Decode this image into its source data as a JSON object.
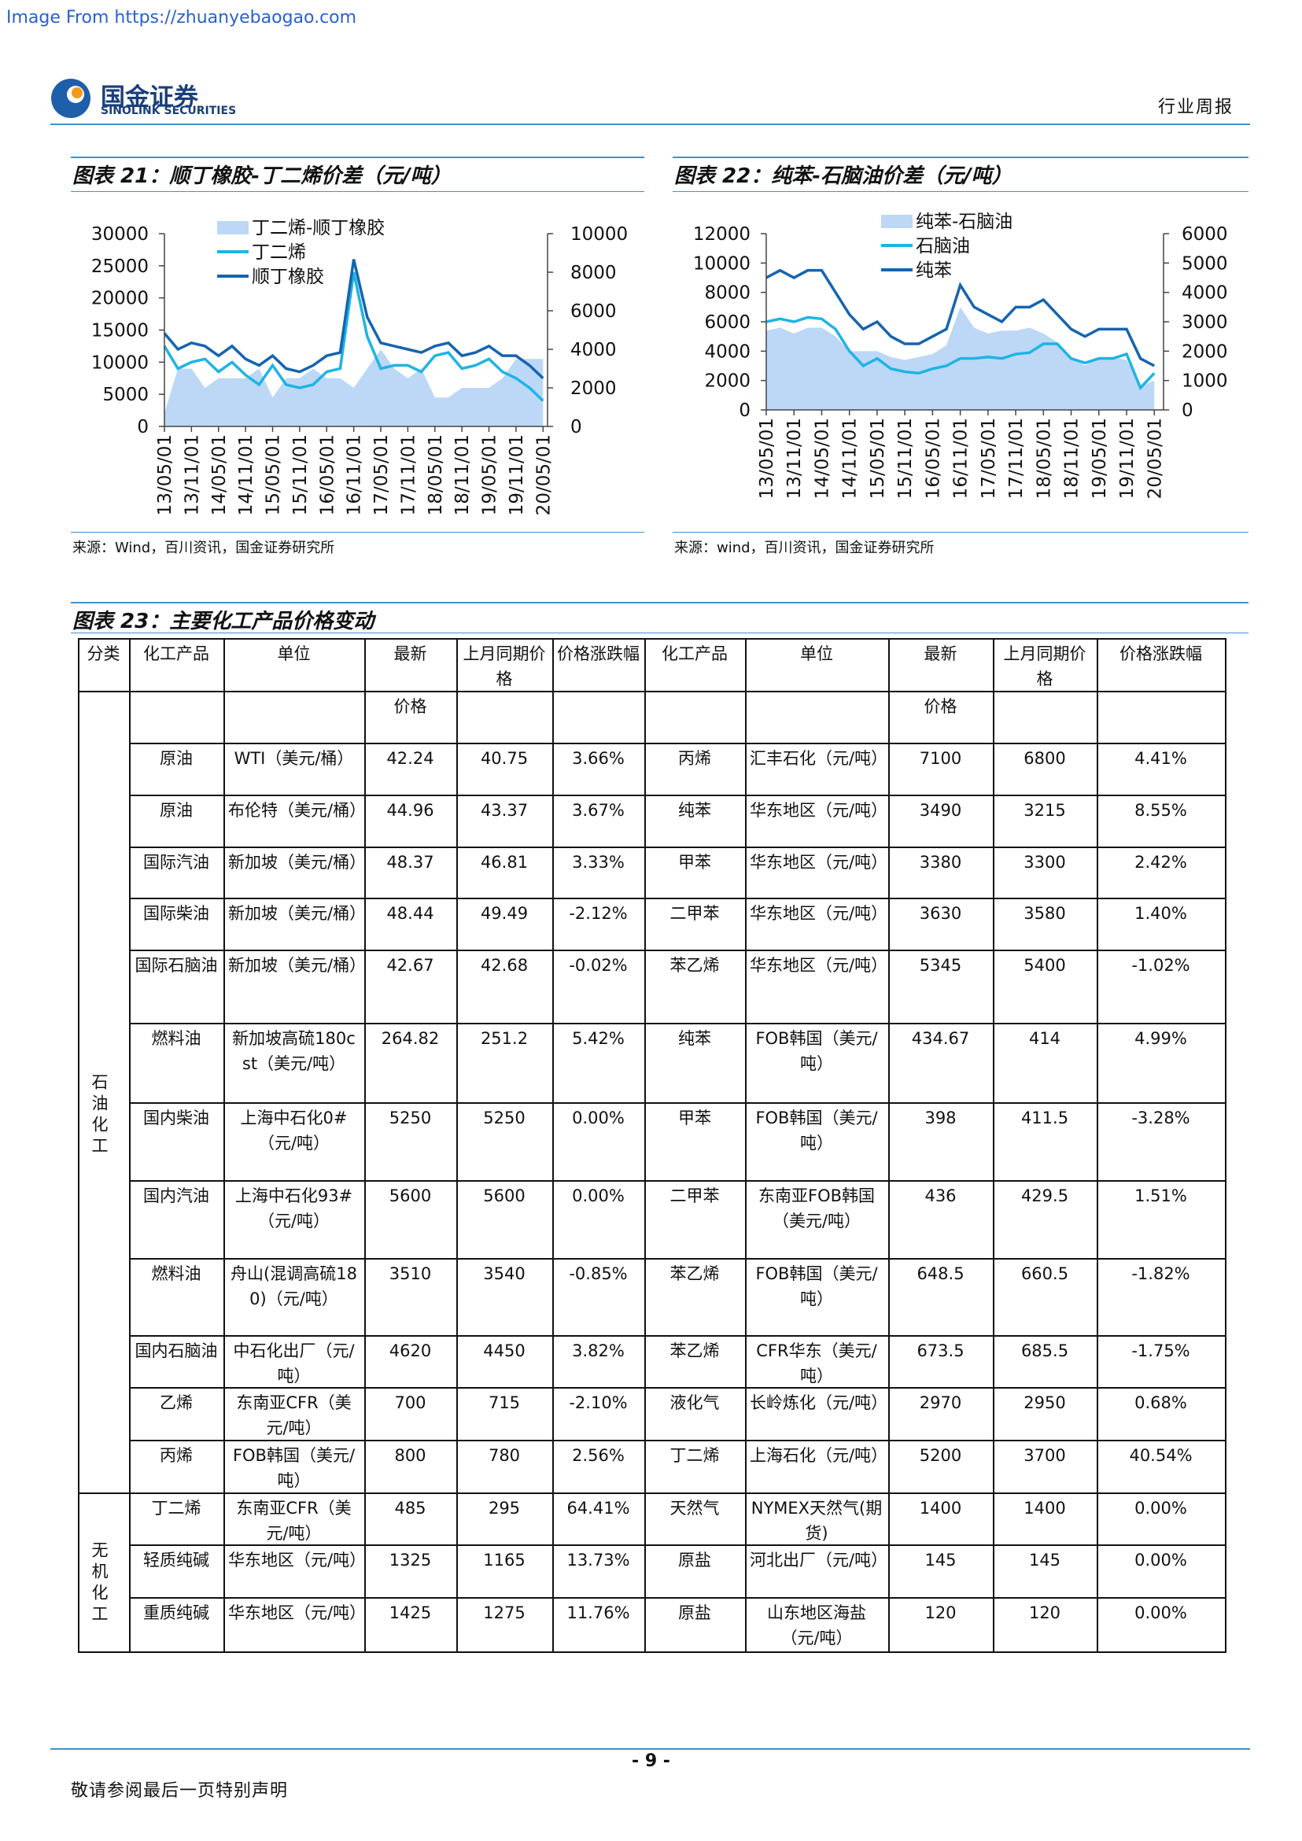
{
  "header": {
    "watermark": "Image From https://zhuanyebaogao.com",
    "logo_cn": "国金证券",
    "logo_en": "SINOLINK SECURITIES",
    "report_type": "行业周报"
  },
  "chart_data": [
    {
      "type": "line",
      "title": "图表 21：顺丁橡胶-丁二烯价差（元/吨）",
      "source": "来源：Wind，百川资讯，国金证券研究所",
      "x": [
        "13/05/01",
        "13/08/01",
        "13/11/01",
        "14/02/01",
        "14/05/01",
        "14/08/01",
        "14/11/01",
        "15/02/01",
        "15/05/01",
        "15/08/01",
        "15/11/01",
        "16/02/01",
        "16/05/01",
        "16/08/01",
        "16/11/01",
        "17/02/01",
        "17/05/01",
        "17/08/01",
        "17/11/01",
        "18/02/01",
        "18/05/01",
        "18/08/01",
        "18/11/01",
        "19/02/01",
        "19/05/01",
        "19/08/01",
        "19/11/01",
        "20/02/01",
        "20/05/01"
      ],
      "xlim": [
        "13/05/01",
        "20/06/01"
      ],
      "xticks": [
        "13/05/01",
        "13/11/01",
        "14/05/01",
        "14/11/01",
        "15/05/01",
        "15/11/01",
        "16/05/01",
        "16/11/01",
        "17/05/01",
        "17/11/01",
        "18/05/01",
        "18/11/01",
        "19/05/01",
        "19/11/01",
        "20/05/01"
      ],
      "ylim": [
        0,
        30000
      ],
      "yticks": [
        0,
        5000,
        10000,
        15000,
        20000,
        25000,
        30000
      ],
      "y2lim": [
        0,
        10000
      ],
      "y2ticks": [
        0,
        2000,
        4000,
        6000,
        8000,
        10000
      ],
      "series": [
        {
          "name": "丁二烯-顺丁橡胶",
          "kind": "area",
          "axis": "y2",
          "color": "#bcd8f6",
          "values": [
            700,
            3000,
            3000,
            2000,
            2500,
            2500,
            2500,
            3000,
            1500,
            2500,
            2500,
            3000,
            2500,
            2500,
            2000,
            3000,
            4000,
            3000,
            2500,
            3000,
            1500,
            1500,
            2000,
            2000,
            2000,
            2500,
            3500,
            3500,
            3500
          ]
        },
        {
          "name": "丁二烯",
          "kind": "line",
          "axis": "y",
          "color": "#1eb4e4",
          "values": [
            12500,
            9000,
            10000,
            10500,
            8500,
            10000,
            8000,
            6500,
            9500,
            6500,
            6000,
            6500,
            8500,
            9000,
            24000,
            14000,
            9000,
            9500,
            9500,
            8500,
            11000,
            11500,
            9000,
            9500,
            10500,
            8500,
            7500,
            6000,
            4000
          ]
        },
        {
          "name": "顺丁橡胶",
          "kind": "line",
          "axis": "y",
          "color": "#1664b0",
          "values": [
            14500,
            12000,
            13000,
            12500,
            11000,
            12500,
            10500,
            9500,
            11000,
            9000,
            8500,
            9500,
            11000,
            11500,
            26000,
            17000,
            13000,
            12500,
            12000,
            11500,
            12500,
            13000,
            11000,
            11500,
            12500,
            11000,
            11000,
            9500,
            7500
          ]
        }
      ]
    },
    {
      "type": "line",
      "title": "图表 22：纯苯-石脑油价差（元/吨）",
      "source": "来源：wind，百川资讯，国金证券研究所",
      "x": [
        "13/05/01",
        "13/08/01",
        "13/11/01",
        "14/02/01",
        "14/05/01",
        "14/08/01",
        "14/11/01",
        "15/02/01",
        "15/05/01",
        "15/08/01",
        "15/11/01",
        "16/02/01",
        "16/05/01",
        "16/08/01",
        "16/11/01",
        "17/02/01",
        "17/05/01",
        "17/08/01",
        "17/11/01",
        "18/02/01",
        "18/05/01",
        "18/08/01",
        "18/11/01",
        "19/02/01",
        "19/05/01",
        "19/08/01",
        "19/11/01",
        "20/02/01",
        "20/05/01"
      ],
      "xlim": [
        "13/05/01",
        "20/07/01"
      ],
      "xticks": [
        "13/05/01",
        "13/11/01",
        "14/05/01",
        "14/11/01",
        "15/05/01",
        "15/11/01",
        "16/05/01",
        "16/11/01",
        "17/05/01",
        "17/11/01",
        "18/05/01",
        "18/11/01",
        "19/05/01",
        "19/11/01",
        "20/05/01"
      ],
      "ylim": [
        0,
        12000
      ],
      "yticks": [
        0,
        2000,
        4000,
        6000,
        8000,
        10000,
        12000
      ],
      "y2lim": [
        0,
        6000
      ],
      "y2ticks": [
        0,
        1000,
        2000,
        3000,
        4000,
        5000,
        6000
      ],
      "series": [
        {
          "name": "纯苯-石脑油",
          "kind": "area",
          "axis": "y2",
          "color": "#bcd8f6",
          "values": [
            2700,
            2800,
            2600,
            2800,
            2800,
            2500,
            2000,
            2000,
            2000,
            1800,
            1700,
            1800,
            1900,
            2200,
            3500,
            2800,
            2600,
            2700,
            2700,
            2800,
            2600,
            2300,
            1800,
            1500,
            1800,
            1800,
            1700,
            800,
            1000
          ]
        },
        {
          "name": "石脑油",
          "kind": "line",
          "axis": "y",
          "color": "#1eb4e4",
          "values": [
            6000,
            6200,
            6000,
            6300,
            6200,
            5500,
            4000,
            3000,
            3500,
            2800,
            2600,
            2500,
            2800,
            3000,
            3500,
            3500,
            3600,
            3500,
            3800,
            3900,
            4500,
            4500,
            3500,
            3200,
            3500,
            3500,
            3800,
            1500,
            2500
          ]
        },
        {
          "name": "纯苯",
          "kind": "line",
          "axis": "y",
          "color": "#1664b0",
          "values": [
            9000,
            9500,
            9000,
            9500,
            9500,
            8000,
            6500,
            5500,
            6000,
            5000,
            4500,
            4500,
            5000,
            5500,
            8500,
            7000,
            6500,
            6000,
            7000,
            7000,
            7500,
            6500,
            5500,
            5000,
            5500,
            5500,
            5500,
            3500,
            3000
          ]
        }
      ]
    }
  ],
  "table": {
    "title": "图表 23：主要化工产品价格变动",
    "header": [
      "分类",
      "化工产品",
      "单位",
      "最新",
      "上月同期价格",
      "价格涨跌幅",
      "化工产品",
      "单位",
      "最新",
      "上月同期价格",
      "价格涨跌幅"
    ],
    "subheader": [
      "价格",
      "价格"
    ],
    "groups": [
      {
        "name": "石油化工",
        "rows": [
          [
            "原油",
            "WTI（美元/桶）",
            "42.24",
            "40.75",
            "3.66%",
            "丙烯",
            "汇丰石化（元/吨）",
            "7100",
            "6800",
            "4.41%"
          ],
          [
            "原油",
            "布伦特（美元/桶）",
            "44.96",
            "43.37",
            "3.67%",
            "纯苯",
            "华东地区（元/吨）",
            "3490",
            "3215",
            "8.55%"
          ],
          [
            "国际汽油",
            "新加坡（美元/桶）",
            "48.37",
            "46.81",
            "3.33%",
            "甲苯",
            "华东地区（元/吨）",
            "3380",
            "3300",
            "2.42%"
          ],
          [
            "国际柴油",
            "新加坡（美元/桶）",
            "48.44",
            "49.49",
            "-2.12%",
            "二甲苯",
            "华东地区（元/吨）",
            "3630",
            "3580",
            "1.40%"
          ],
          [
            "国际石脑油",
            "新加坡（美元/桶）",
            "42.67",
            "42.68",
            "-0.02%",
            "苯乙烯",
            "华东地区（元/吨）",
            "5345",
            "5400",
            "-1.02%"
          ],
          [
            "燃料油",
            "新加坡高硫180cst（美元/吨）",
            "264.82",
            "251.2",
            "5.42%",
            "纯苯",
            "FOB韩国（美元/吨）",
            "434.67",
            "414",
            "4.99%"
          ],
          [
            "国内柴油",
            "上海中石化0#（元/吨）",
            "5250",
            "5250",
            "0.00%",
            "甲苯",
            "FOB韩国（美元/吨）",
            "398",
            "411.5",
            "-3.28%"
          ],
          [
            "国内汽油",
            "上海中石化93#（元/吨）",
            "5600",
            "5600",
            "0.00%",
            "二甲苯",
            "东南亚FOB韩国（美元/吨）",
            "436",
            "429.5",
            "1.51%"
          ],
          [
            "燃料油",
            "舟山(混调高硫180)（元/吨）",
            "3510",
            "3540",
            "-0.85%",
            "苯乙烯",
            "FOB韩国（美元/吨）",
            "648.5",
            "660.5",
            "-1.82%"
          ],
          [
            "国内石脑油",
            "中石化出厂（元/吨）",
            "4620",
            "4450",
            "3.82%",
            "苯乙烯",
            "CFR华东（美元/吨）",
            "673.5",
            "685.5",
            "-1.75%"
          ],
          [
            "乙烯",
            "东南亚CFR（美元/吨）",
            "700",
            "715",
            "-2.10%",
            "液化气",
            "长岭炼化（元/吨）",
            "2970",
            "2950",
            "0.68%"
          ],
          [
            "丙烯",
            "FOB韩国（美元/吨）",
            "800",
            "780",
            "2.56%",
            "丁二烯",
            "上海石化（元/吨）",
            "5200",
            "3700",
            "40.54%"
          ]
        ]
      },
      {
        "name": "无机化工",
        "rows": [
          [
            "丁二烯",
            "东南亚CFR（美元/吨）",
            "485",
            "295",
            "64.41%",
            "天然气",
            "NYMEX天然气(期货)",
            "1400",
            "1400",
            "0.00%"
          ],
          [
            "轻质纯碱",
            "华东地区（元/吨）",
            "1325",
            "1165",
            "13.73%",
            "原盐",
            "河北出厂（元/吨）",
            "145",
            "145",
            "0.00%"
          ],
          [
            "重质纯碱",
            "华东地区（元/吨）",
            "1425",
            "1275",
            "11.76%",
            "原盐",
            "山东地区海盐（元/吨）",
            "120",
            "120",
            "0.00%"
          ]
        ]
      }
    ]
  },
  "footer": {
    "page": "- 9 -",
    "disclaimer": "敬请参阅最后一页特别声明"
  }
}
